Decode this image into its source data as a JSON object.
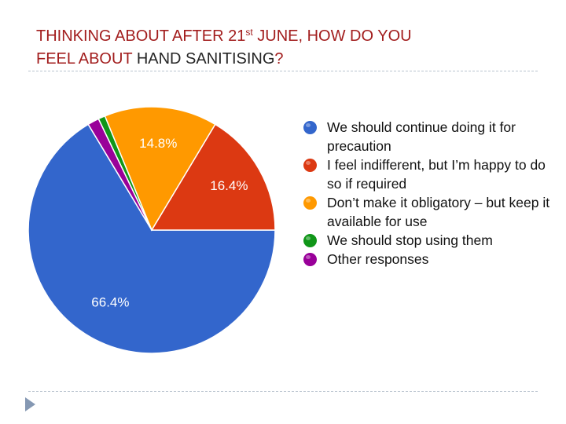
{
  "title": {
    "line1_prefix": "THINKING ABOUT AFTER 21",
    "line1_sup": "st",
    "line1_suffix": " JUNE, HOW DO YOU",
    "line2_prefix": "FEEL ABOUT ",
    "line2_highlight": "HAND SANITISING",
    "line2_end": "?"
  },
  "chart_data": {
    "type": "pie",
    "slices": [
      {
        "label": "We should continue doing it for precaution",
        "value": 66.4,
        "value_label": "66.4%",
        "color": "#3366cc"
      },
      {
        "label": "I feel indifferent, but I’m happy to do so if required",
        "value": 16.4,
        "value_label": "16.4%",
        "color": "#dc3912"
      },
      {
        "label": "Don’t make it obligatory – but keep it available for use",
        "value": 14.8,
        "value_label": "14.8%",
        "color": "#ff9900"
      },
      {
        "label": "We should stop using them",
        "value": 0.9,
        "value_label": "",
        "color": "#109618"
      },
      {
        "label": "Other responses",
        "value": 1.5,
        "value_label": "",
        "color": "#990099"
      }
    ],
    "legend_position": "right"
  }
}
